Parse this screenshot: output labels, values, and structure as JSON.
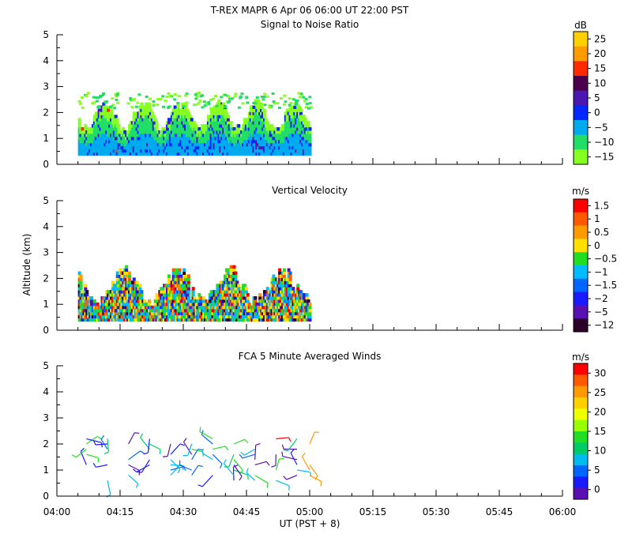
{
  "figure": {
    "title": "T-REX   MAPR   6 Apr 06   06:00 UT   22:00   PST",
    "xlabel": "UT  (PST + 8)",
    "ylabel": "Altitude  (km)"
  },
  "chart_data": [
    {
      "type": "heatmap",
      "title": "Signal to Noise Ratio",
      "colorbar_unit": "dB",
      "ylim": [
        0,
        5
      ],
      "yticks": [
        0,
        1,
        2,
        3,
        4,
        5
      ],
      "xlim_minutes": [
        0,
        120
      ],
      "xticks": [
        "04:00",
        "04:15",
        "04:30",
        "04:45",
        "05:00",
        "05:15",
        "05:30",
        "05:45",
        "06:00"
      ],
      "colorbar": {
        "labels": [
          "25",
          "20",
          "15",
          "10",
          "5",
          "0",
          "−5",
          "−10",
          "−15"
        ],
        "colors": [
          "#ffd000",
          "#ff9a00",
          "#ff2a00",
          "#4a004a",
          "#4a18b0",
          "#0028ff",
          "#00aaee",
          "#22dd66",
          "#88ff22"
        ]
      },
      "data_extent": {
        "start_min": 5,
        "end_min": 60,
        "base_km": 0.35,
        "top_km": 2.8
      }
    },
    {
      "type": "heatmap",
      "title": "Vertical Velocity",
      "colorbar_unit": "m/s",
      "ylim": [
        0,
        5
      ],
      "yticks": [
        0,
        1,
        2,
        3,
        4,
        5
      ],
      "xlim_minutes": [
        0,
        120
      ],
      "colorbar": {
        "labels": [
          "1.5",
          "1",
          "0.5",
          "0",
          "−0.5",
          "−1",
          "−1.5",
          "−2",
          "−5",
          "−12"
        ],
        "colors": [
          "#ff0000",
          "#ff5a00",
          "#ff9a00",
          "#ffe000",
          "#22dd22",
          "#00bbff",
          "#0066ff",
          "#1a1aff",
          "#5a10b0",
          "#2a002a"
        ]
      },
      "data_extent": {
        "start_min": 5,
        "end_min": 60,
        "base_km": 0.35,
        "top_km": 2.8
      }
    },
    {
      "type": "scatter",
      "title": "FCA 5 Minute Averaged Winds",
      "colorbar_unit": "m/s",
      "ylim": [
        0,
        5
      ],
      "yticks": [
        0,
        1,
        2,
        3,
        4,
        5
      ],
      "xlim_minutes": [
        0,
        120
      ],
      "colorbar": {
        "labels": [
          "30",
          "25",
          "20",
          "15",
          "10",
          "5",
          "0"
        ],
        "colors": [
          "#ff0000",
          "#ff5a00",
          "#ff9a00",
          "#ffd000",
          "#eeff00",
          "#99ff00",
          "#22dd22",
          "#00cc66",
          "#00bbee",
          "#0066ff",
          "#1a1aff",
          "#5a10b0"
        ]
      },
      "winds_columns_minutes": [
        7,
        12,
        17,
        22,
        27,
        32,
        37,
        42,
        47,
        52,
        57,
        60
      ],
      "winds_levels_km": [
        0.6,
        0.8,
        1.0,
        1.2,
        1.4,
        1.6,
        1.8,
        2.0,
        2.2
      ]
    }
  ]
}
